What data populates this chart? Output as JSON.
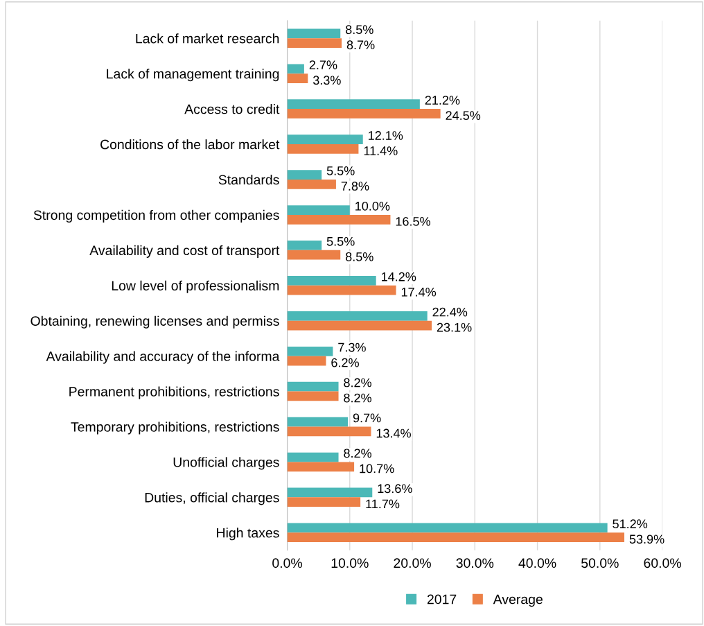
{
  "chart_data": {
    "type": "bar",
    "orientation": "horizontal",
    "categories": [
      "Lack of market research",
      "Lack of management training",
      "Access to credit",
      "Conditions of the labor market",
      "Standards",
      "Strong competition from other companies",
      "Availability and cost of transport",
      "Low level of professionalism",
      "Obtaining, renewing licenses and permiss",
      "Availability and accuracy of the informa",
      "Permanent prohibitions, restrictions",
      "Temporary prohibitions, restrictions",
      "Unofficial charges",
      "Duties, official charges",
      "High taxes"
    ],
    "series": [
      {
        "name": "2017",
        "color": "#4bb8b7",
        "values": [
          8.5,
          2.7,
          21.2,
          12.1,
          5.5,
          10.0,
          5.5,
          14.2,
          22.4,
          7.3,
          8.2,
          9.7,
          8.2,
          13.6,
          51.2
        ],
        "value_labels": [
          "8.5%",
          "2.7%",
          "21.2%",
          "12.1%",
          "5.5%",
          "10.0%",
          "5.5%",
          "14.2%",
          "22.4%",
          "7.3%",
          "8.2%",
          "9.7%",
          "8.2%",
          "13.6%",
          "51.2%"
        ]
      },
      {
        "name": "Average",
        "color": "#ec8047",
        "values": [
          8.7,
          3.3,
          24.5,
          11.4,
          7.8,
          16.5,
          8.5,
          17.4,
          23.1,
          6.2,
          8.2,
          13.4,
          10.7,
          11.7,
          53.9
        ],
        "value_labels": [
          "8.7%",
          "3.3%",
          "24.5%",
          "11.4%",
          "7.8%",
          "16.5%",
          "8.5%",
          "17.4%",
          "23.1%",
          "6.2%",
          "8.2%",
          "13.4%",
          "10.7%",
          "11.7%",
          "53.9%"
        ]
      }
    ],
    "xlim": [
      0,
      60
    ],
    "xticks": [
      {
        "value": 0,
        "label": "0.0%"
      },
      {
        "value": 10,
        "label": "10.0%"
      },
      {
        "value": 20,
        "label": "20.0%"
      },
      {
        "value": 30,
        "label": "30.0%"
      },
      {
        "value": 40,
        "label": "40.0%"
      },
      {
        "value": 50,
        "label": "50.0%"
      },
      {
        "value": 60,
        "label": "60.0%"
      }
    ],
    "grid": "x",
    "legend": "bottom"
  }
}
